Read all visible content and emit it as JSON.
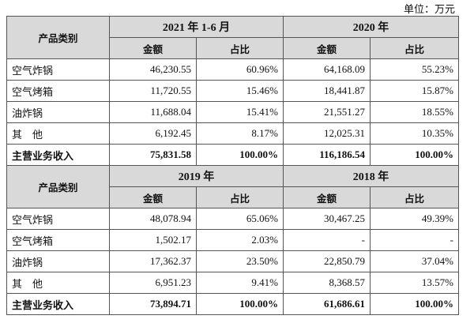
{
  "unit": "单位：万元",
  "blocks": [
    {
      "category_header": "产品类别",
      "periods": [
        "2021 年 1-6 月",
        "2020 年"
      ],
      "columns": [
        "金额",
        "占比",
        "金额",
        "占比"
      ],
      "rows": [
        [
          "空气炸锅",
          "46,230.55",
          "60.96%",
          "64,168.09",
          "55.23%"
        ],
        [
          "空气烤箱",
          "11,720.55",
          "15.46%",
          "18,441.87",
          "15.87%"
        ],
        [
          "油炸锅",
          "11,688.04",
          "15.41%",
          "21,551.27",
          "18.55%"
        ],
        [
          "其　他",
          "6,192.45",
          "8.17%",
          "12,025.31",
          "10.35%"
        ],
        [
          "主营业务收入",
          "75,831.58",
          "100.00%",
          "116,186.54",
          "100.00%"
        ]
      ]
    },
    {
      "category_header": "产品类别",
      "periods": [
        "2019 年",
        "2018 年"
      ],
      "columns": [
        "金额",
        "占比",
        "金额",
        "占比"
      ],
      "rows": [
        [
          "空气炸锅",
          "48,078.94",
          "65.06%",
          "30,467.25",
          "49.39%"
        ],
        [
          "空气烤箱",
          "1,502.17",
          "2.03%",
          "-",
          "-"
        ],
        [
          "油炸锅",
          "17,362.37",
          "23.50%",
          "22,850.79",
          "37.04%"
        ],
        [
          "其　他",
          "6,951.23",
          "9.41%",
          "8,368.57",
          "13.57%"
        ],
        [
          "主营业务收入",
          "73,894.71",
          "100.00%",
          "61,686.61",
          "100.00%"
        ]
      ]
    }
  ]
}
